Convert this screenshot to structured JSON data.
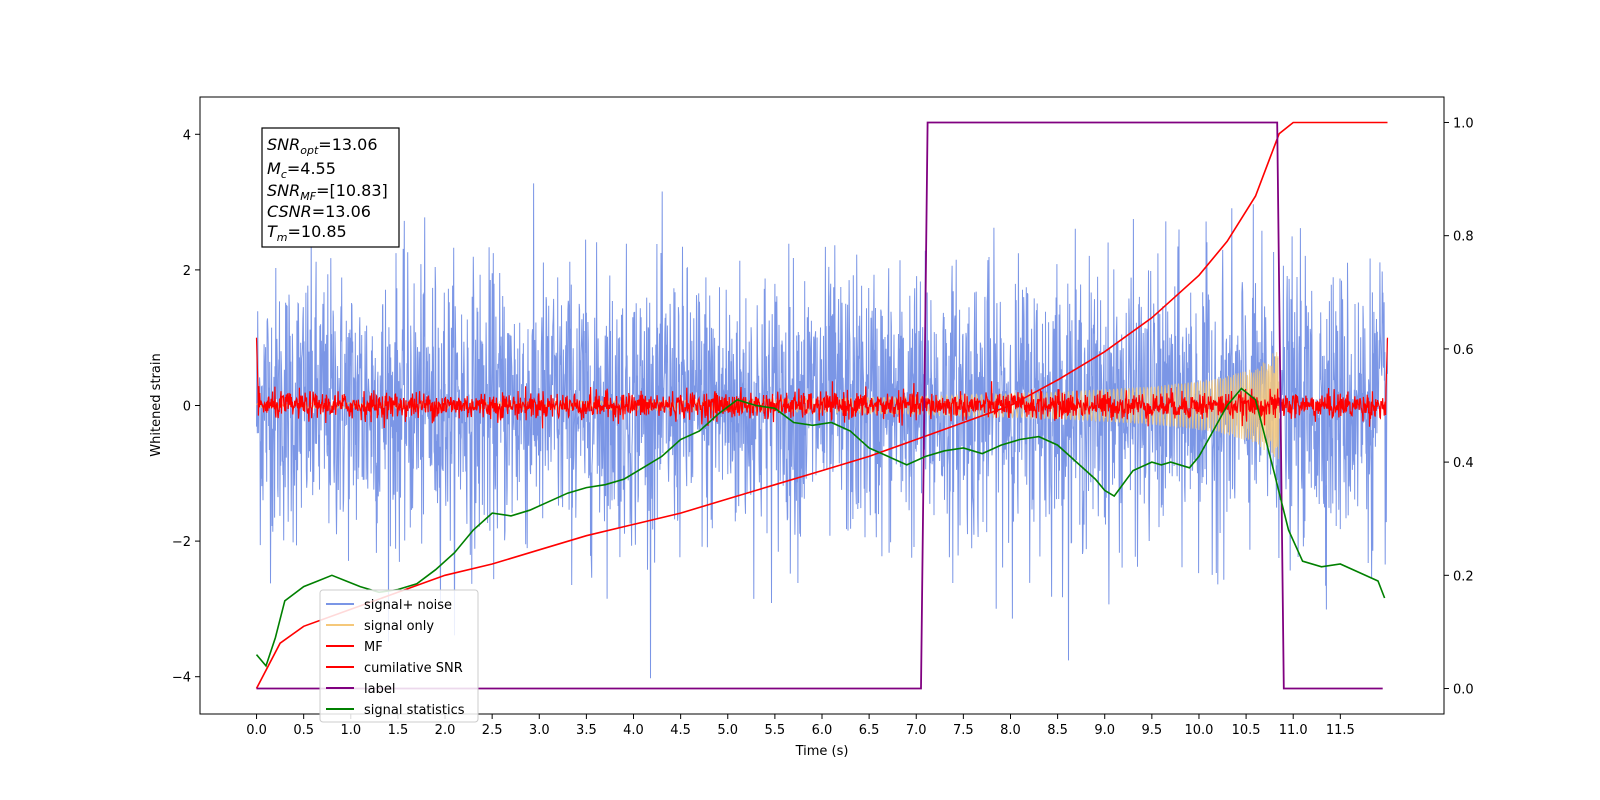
{
  "chart_data": {
    "type": "line",
    "title": "",
    "xlabel": "Time (s)",
    "ylabel": "Whitened strain",
    "xlim": [
      -0.6,
      12.6
    ],
    "ylim": [
      -4.55,
      4.55
    ],
    "y2lim": [
      -0.045,
      1.045
    ],
    "xticks": [
      "0.0",
      "0.5",
      "1.0",
      "1.5",
      "2.0",
      "2.5",
      "3.0",
      "3.5",
      "4.0",
      "4.5",
      "5.0",
      "5.5",
      "6.0",
      "6.5",
      "7.0",
      "7.5",
      "8.0",
      "8.5",
      "9.0",
      "9.5",
      "10.0",
      "10.5",
      "11.0",
      "11.5"
    ],
    "yticks": [
      "4",
      "2",
      "0",
      "−2",
      "−4"
    ],
    "y2ticks": [
      "1.0",
      "0.8",
      "0.6",
      "0.4",
      "0.2",
      "0.0"
    ],
    "grid": false,
    "legend_position": "lower-left",
    "legend": [
      "signal+ noise",
      "signal only",
      "MF",
      "cumilative SNR",
      "label",
      "signal statistics"
    ],
    "info_box": {
      "snr_opt": {
        "base": "SNR",
        "sub": "opt",
        "value": "=13.06"
      },
      "mc": {
        "base": "M",
        "sub": "c",
        "value": "=4.55"
      },
      "snr_mf": {
        "base": "SNR",
        "sub": "MF",
        "value": "=[10.83]"
      },
      "csnr": {
        "base": "CSNR",
        "sub": "",
        "value": "=13.06"
      },
      "tm": {
        "base": "T",
        "sub": "m",
        "value": "=10.85"
      }
    },
    "series": [
      {
        "name": "signal+ noise",
        "axis": "left",
        "color": "#7b96e6",
        "kind": "noise",
        "x_range": [
          0,
          12
        ],
        "amplitude_typical": 1.0,
        "amplitude_max": 4.1
      },
      {
        "name": "signal only",
        "axis": "left",
        "color": "#f5c87a",
        "kind": "chirp",
        "x_range": [
          0,
          10.85
        ],
        "amplitude_at": {
          "x": [
            0,
            5.0,
            7.0,
            8.5,
            9.5,
            10.2,
            10.6,
            10.85
          ],
          "y": [
            0.03,
            0.08,
            0.13,
            0.2,
            0.28,
            0.4,
            0.55,
            0.85
          ]
        }
      },
      {
        "name": "MF",
        "axis": "left",
        "color": "#ff0000",
        "kind": "matched-filter",
        "x_range": [
          0,
          12
        ],
        "amplitude_typical": 0.1,
        "edge_value": 1.0
      },
      {
        "name": "cumilative SNR",
        "axis": "right",
        "color": "#ff0000",
        "kind": "line",
        "x": [
          0,
          0.25,
          0.5,
          1.0,
          1.5,
          2.0,
          2.5,
          3.0,
          3.5,
          4.0,
          4.5,
          5.0,
          5.5,
          6.0,
          6.5,
          7.0,
          7.5,
          8.0,
          8.5,
          9.0,
          9.5,
          10.0,
          10.3,
          10.6,
          10.85,
          11.0,
          12.0
        ],
        "y": [
          0.0,
          0.08,
          0.11,
          0.14,
          0.17,
          0.2,
          0.22,
          0.245,
          0.27,
          0.29,
          0.31,
          0.335,
          0.36,
          0.385,
          0.41,
          0.44,
          0.47,
          0.5,
          0.545,
          0.595,
          0.655,
          0.73,
          0.79,
          0.87,
          0.98,
          1.0,
          1.0
        ]
      },
      {
        "name": "label",
        "axis": "right",
        "color": "#800080",
        "kind": "line",
        "x": [
          0,
          7.05,
          7.12,
          10.83,
          10.9,
          11.95
        ],
        "y": [
          0,
          0,
          1,
          1,
          0,
          0
        ]
      },
      {
        "name": "signal statistics",
        "axis": "right",
        "color": "#008000",
        "kind": "line",
        "x": [
          0.0,
          0.1,
          0.2,
          0.3,
          0.5,
          0.65,
          0.8,
          0.95,
          1.1,
          1.3,
          1.5,
          1.7,
          1.9,
          2.1,
          2.3,
          2.5,
          2.7,
          2.9,
          3.1,
          3.3,
          3.5,
          3.7,
          3.9,
          4.1,
          4.3,
          4.5,
          4.7,
          4.9,
          5.1,
          5.3,
          5.5,
          5.7,
          5.9,
          6.1,
          6.3,
          6.5,
          6.7,
          6.9,
          7.1,
          7.3,
          7.5,
          7.7,
          7.9,
          8.1,
          8.3,
          8.5,
          8.7,
          8.9,
          9.0,
          9.1,
          9.3,
          9.5,
          9.6,
          9.7,
          9.9,
          10.0,
          10.1,
          10.3,
          10.45,
          10.6,
          10.8,
          10.95,
          11.1,
          11.3,
          11.5,
          11.7,
          11.9,
          11.97
        ],
        "y": [
          0.06,
          0.04,
          0.09,
          0.155,
          0.18,
          0.19,
          0.2,
          0.19,
          0.18,
          0.17,
          0.175,
          0.185,
          0.21,
          0.24,
          0.28,
          0.31,
          0.305,
          0.315,
          0.33,
          0.345,
          0.355,
          0.36,
          0.37,
          0.39,
          0.41,
          0.44,
          0.455,
          0.485,
          0.51,
          0.5,
          0.495,
          0.47,
          0.465,
          0.47,
          0.455,
          0.425,
          0.41,
          0.395,
          0.41,
          0.42,
          0.425,
          0.415,
          0.43,
          0.44,
          0.445,
          0.43,
          0.4,
          0.37,
          0.35,
          0.34,
          0.385,
          0.4,
          0.395,
          0.4,
          0.39,
          0.41,
          0.44,
          0.5,
          0.53,
          0.51,
          0.38,
          0.28,
          0.225,
          0.215,
          0.22,
          0.205,
          0.19,
          0.16
        ]
      }
    ]
  }
}
